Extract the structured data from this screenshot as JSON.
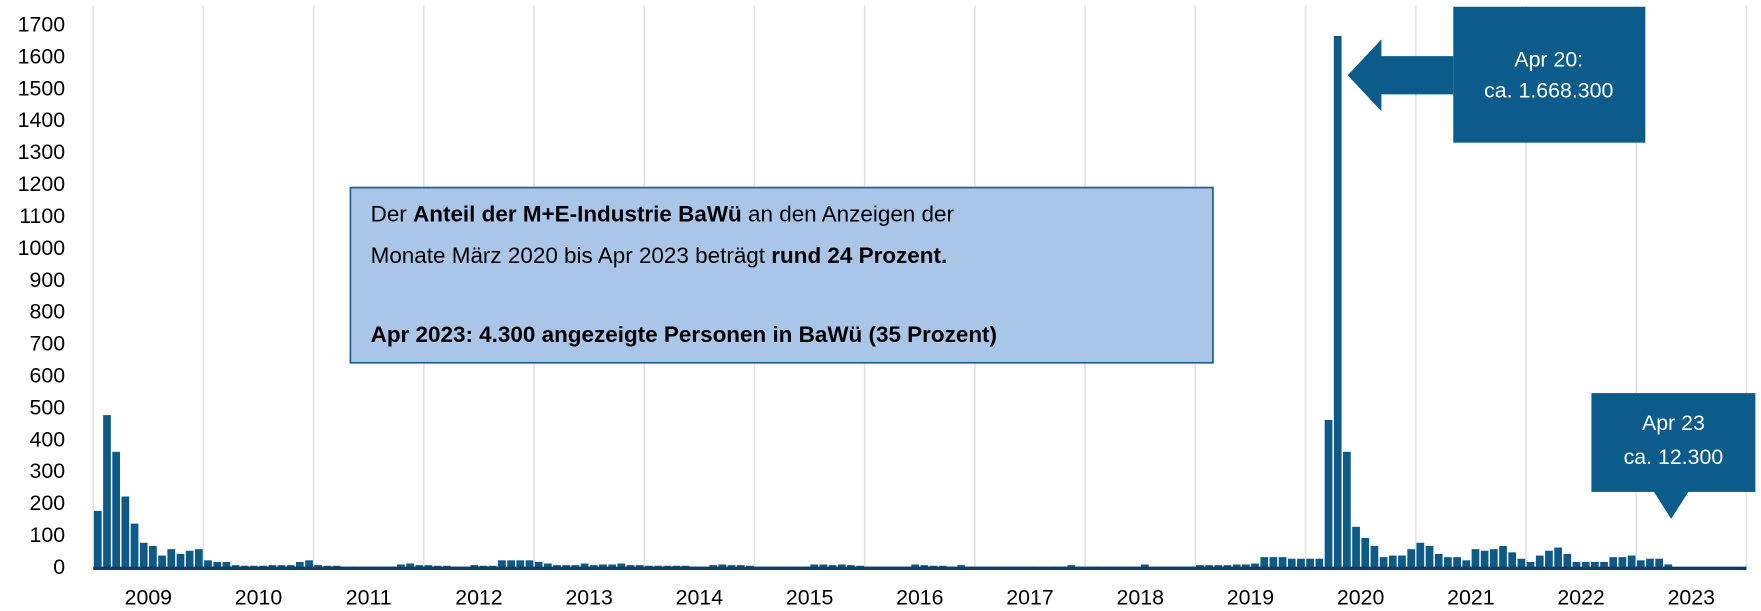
{
  "chart_data": {
    "type": "bar",
    "color": "#0e5a87",
    "categories": [
      null,
      null,
      null,
      null,
      null,
      null,
      "2009",
      null,
      null,
      null,
      null,
      null,
      null,
      null,
      null,
      null,
      null,
      null,
      "2010",
      null,
      null,
      null,
      null,
      null,
      null,
      null,
      null,
      null,
      null,
      null,
      "2011",
      null,
      null,
      null,
      null,
      null,
      null,
      null,
      null,
      null,
      null,
      null,
      "2012",
      null,
      null,
      null,
      null,
      null,
      null,
      null,
      null,
      null,
      null,
      null,
      "2013",
      null,
      null,
      null,
      null,
      null,
      null,
      null,
      null,
      null,
      null,
      null,
      "2014",
      null,
      null,
      null,
      null,
      null,
      null,
      null,
      null,
      null,
      null,
      null,
      "2015",
      null,
      null,
      null,
      null,
      null,
      null,
      null,
      null,
      null,
      null,
      null,
      "2016",
      null,
      null,
      null,
      null,
      null,
      null,
      null,
      null,
      null,
      null,
      null,
      "2017",
      null,
      null,
      null,
      null,
      null,
      null,
      null,
      null,
      null,
      null,
      null,
      "2018",
      null,
      null,
      null,
      null,
      null,
      null,
      null,
      null,
      null,
      null,
      null,
      "2019",
      null,
      null,
      null,
      null,
      null,
      null,
      null,
      null,
      null,
      null,
      null,
      "2020",
      null,
      null,
      null,
      null,
      null,
      null,
      null,
      null,
      null,
      null,
      null,
      "2021",
      null,
      null,
      null,
      null,
      null,
      null,
      null,
      null,
      null,
      null,
      null,
      "2022",
      null,
      null,
      null,
      null,
      null,
      null,
      null,
      null,
      null,
      null,
      null,
      "2023",
      null,
      null,
      null,
      null,
      null
    ],
    "values": [
      180,
      480,
      365,
      225,
      140,
      80,
      70,
      40,
      60,
      45,
      55,
      60,
      25,
      20,
      20,
      10,
      8,
      8,
      8,
      10,
      10,
      10,
      20,
      25,
      10,
      8,
      8,
      5,
      5,
      5,
      5,
      5,
      5,
      12,
      15,
      10,
      10,
      8,
      8,
      5,
      5,
      10,
      8,
      8,
      25,
      25,
      25,
      25,
      20,
      15,
      10,
      10,
      10,
      15,
      10,
      12,
      12,
      15,
      10,
      10,
      8,
      8,
      8,
      8,
      8,
      5,
      5,
      10,
      12,
      10,
      10,
      8,
      5,
      5,
      5,
      5,
      5,
      5,
      12,
      12,
      10,
      12,
      10,
      8,
      5,
      5,
      5,
      5,
      5,
      12,
      10,
      8,
      8,
      5,
      10,
      5,
      5,
      5,
      5,
      5,
      5,
      5,
      5,
      5,
      5,
      5,
      10,
      5,
      5,
      5,
      5,
      5,
      5,
      5,
      12,
      5,
      5,
      5,
      5,
      5,
      10,
      10,
      10,
      10,
      12,
      12,
      15,
      35,
      35,
      35,
      30,
      30,
      30,
      30,
      465,
      1668.3,
      365,
      130,
      95,
      70,
      35,
      40,
      40,
      60,
      80,
      70,
      45,
      35,
      35,
      25,
      60,
      55,
      60,
      70,
      50,
      30,
      20,
      40,
      55,
      65,
      45,
      20,
      20,
      20,
      20,
      35,
      35,
      40,
      25,
      30,
      30,
      12.3,
      null,
      null,
      null,
      null,
      null,
      null,
      null,
      null
    ],
    "ylim": [
      0,
      1700
    ],
    "yticks": [
      0,
      100,
      200,
      300,
      400,
      500,
      600,
      700,
      800,
      900,
      1000,
      1100,
      1200,
      1300,
      1400,
      1500,
      1600,
      1700
    ],
    "grid": true,
    "annotations": [
      {
        "lines": [
          [
            {
              "text": "Der "
            },
            {
              "text": "Anteil der M+E-Industrie BaWü",
              "bold": true
            },
            {
              "text": " an den Anzeigen der"
            }
          ],
          [
            {
              "text": "Monate März 2020 bis Apr 2023 beträgt "
            },
            {
              "text": "rund 24 Prozent.",
              "bold": true
            }
          ],
          [
            {
              "text": "Apr 2023: 4.300 angezeigte Personen in BaWü (35 Prozent)",
              "bold": true
            }
          ]
        ]
      },
      {
        "lines": [
          "Apr 20:",
          "ca. 1.668.300"
        ]
      },
      {
        "lines": [
          "Apr 23",
          "ca. 12.300"
        ]
      }
    ]
  }
}
